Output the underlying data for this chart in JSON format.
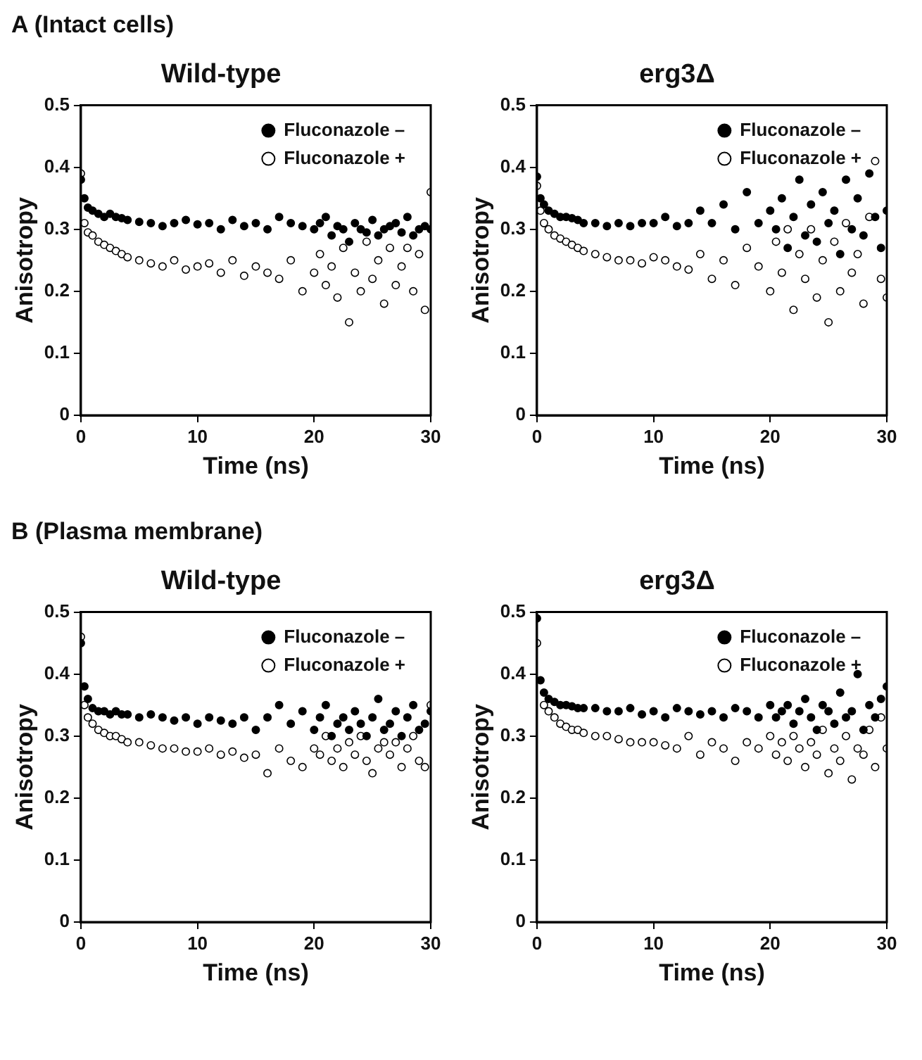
{
  "chart_data": [
    {
      "type": "scatter",
      "title": "Wild-type",
      "annotations": [
        "A (Intact cells)"
      ],
      "xlabel": "Time (ns)",
      "ylabel": "Anisotropy",
      "xlim": [
        0,
        30
      ],
      "xticks": [
        0,
        10,
        20,
        30
      ],
      "ylim": [
        0,
        0.5
      ],
      "yticks": [
        0,
        0.1,
        0.2,
        0.3,
        0.4,
        0.5
      ],
      "legend": "top right",
      "marker": "circle",
      "x": [
        0,
        0.3,
        0.6,
        1,
        1.5,
        2,
        2.5,
        3,
        3.5,
        4,
        5,
        6,
        7,
        8,
        9,
        10,
        11,
        12,
        13,
        14,
        15,
        16,
        17,
        18,
        19,
        20,
        20.5,
        21,
        21.5,
        22,
        22.5,
        23,
        23.5,
        24,
        24.5,
        25,
        25.5,
        26,
        26.5,
        27,
        27.5,
        28,
        28.5,
        29,
        29.5,
        30
      ],
      "series": [
        {
          "name": "Fluconazole –",
          "color": "#000000",
          "values": [
            0.38,
            0.35,
            0.335,
            0.33,
            0.325,
            0.32,
            0.325,
            0.32,
            0.318,
            0.315,
            0.312,
            0.31,
            0.305,
            0.31,
            0.315,
            0.308,
            0.31,
            0.3,
            0.315,
            0.305,
            0.31,
            0.3,
            0.32,
            0.31,
            0.305,
            0.3,
            0.31,
            0.32,
            0.29,
            0.305,
            0.3,
            0.28,
            0.31,
            0.3,
            0.295,
            0.315,
            0.29,
            0.3,
            0.305,
            0.31,
            0.295,
            0.32,
            0.29,
            0.3,
            0.305,
            0.3
          ]
        },
        {
          "name": "Fluconazole +",
          "color": "#ffffff",
          "values": [
            0.39,
            0.31,
            0.295,
            0.29,
            0.28,
            0.275,
            0.27,
            0.265,
            0.26,
            0.255,
            0.25,
            0.245,
            0.24,
            0.25,
            0.235,
            0.24,
            0.245,
            0.23,
            0.25,
            0.225,
            0.24,
            0.23,
            0.22,
            0.25,
            0.2,
            0.23,
            0.26,
            0.21,
            0.24,
            0.19,
            0.27,
            0.15,
            0.23,
            0.2,
            0.28,
            0.22,
            0.25,
            0.18,
            0.27,
            0.21,
            0.24,
            0.27,
            0.2,
            0.26,
            0.17,
            0.36
          ]
        }
      ]
    },
    {
      "type": "scatter",
      "title": "erg3Δ",
      "xlabel": "Time (ns)",
      "ylabel": "Anisotropy",
      "xlim": [
        0,
        30
      ],
      "xticks": [
        0,
        10,
        20,
        30
      ],
      "ylim": [
        0,
        0.5
      ],
      "yticks": [
        0,
        0.1,
        0.2,
        0.3,
        0.4,
        0.5
      ],
      "legend": "top right",
      "marker": "circle",
      "x": [
        0,
        0.3,
        0.6,
        1,
        1.5,
        2,
        2.5,
        3,
        3.5,
        4,
        5,
        6,
        7,
        8,
        9,
        10,
        11,
        12,
        13,
        14,
        15,
        16,
        17,
        18,
        19,
        20,
        20.5,
        21,
        21.5,
        22,
        22.5,
        23,
        23.5,
        24,
        24.5,
        25,
        25.5,
        26,
        26.5,
        27,
        27.5,
        28,
        28.5,
        29,
        29.5,
        30
      ],
      "series": [
        {
          "name": "Fluconazole –",
          "color": "#000000",
          "values": [
            0.385,
            0.35,
            0.34,
            0.33,
            0.325,
            0.32,
            0.32,
            0.318,
            0.315,
            0.31,
            0.31,
            0.305,
            0.31,
            0.305,
            0.31,
            0.31,
            0.32,
            0.305,
            0.31,
            0.33,
            0.31,
            0.34,
            0.3,
            0.36,
            0.31,
            0.33,
            0.3,
            0.35,
            0.27,
            0.32,
            0.38,
            0.29,
            0.34,
            0.28,
            0.36,
            0.31,
            0.33,
            0.26,
            0.38,
            0.3,
            0.35,
            0.29,
            0.39,
            0.32,
            0.27,
            0.33
          ]
        },
        {
          "name": "Fluconazole +",
          "color": "#ffffff",
          "values": [
            0.37,
            0.33,
            0.31,
            0.3,
            0.29,
            0.285,
            0.28,
            0.275,
            0.27,
            0.265,
            0.26,
            0.255,
            0.25,
            0.25,
            0.245,
            0.255,
            0.25,
            0.24,
            0.235,
            0.26,
            0.22,
            0.25,
            0.21,
            0.27,
            0.24,
            0.2,
            0.28,
            0.23,
            0.3,
            0.17,
            0.26,
            0.22,
            0.3,
            0.19,
            0.25,
            0.15,
            0.28,
            0.2,
            0.31,
            0.23,
            0.26,
            0.18,
            0.32,
            0.41,
            0.22,
            0.19
          ]
        }
      ]
    },
    {
      "type": "scatter",
      "title": "Wild-type",
      "annotations": [
        "B (Plasma membrane)"
      ],
      "xlabel": "Time (ns)",
      "ylabel": "Anisotropy",
      "xlim": [
        0,
        30
      ],
      "xticks": [
        0,
        10,
        20,
        30
      ],
      "ylim": [
        0,
        0.5
      ],
      "yticks": [
        0,
        0.1,
        0.2,
        0.3,
        0.4,
        0.5
      ],
      "legend": "top right",
      "marker": "circle",
      "x": [
        0,
        0.3,
        0.6,
        1,
        1.5,
        2,
        2.5,
        3,
        3.5,
        4,
        5,
        6,
        7,
        8,
        9,
        10,
        11,
        12,
        13,
        14,
        15,
        16,
        17,
        18,
        19,
        20,
        20.5,
        21,
        21.5,
        22,
        22.5,
        23,
        23.5,
        24,
        24.5,
        25,
        25.5,
        26,
        26.5,
        27,
        27.5,
        28,
        28.5,
        29,
        29.5,
        30
      ],
      "series": [
        {
          "name": "Fluconazole –",
          "color": "#000000",
          "values": [
            0.45,
            0.38,
            0.36,
            0.345,
            0.34,
            0.34,
            0.335,
            0.34,
            0.335,
            0.335,
            0.33,
            0.335,
            0.33,
            0.325,
            0.33,
            0.32,
            0.33,
            0.325,
            0.32,
            0.33,
            0.31,
            0.33,
            0.35,
            0.32,
            0.34,
            0.31,
            0.33,
            0.35,
            0.3,
            0.32,
            0.33,
            0.31,
            0.34,
            0.32,
            0.3,
            0.33,
            0.36,
            0.31,
            0.32,
            0.34,
            0.3,
            0.33,
            0.35,
            0.31,
            0.32,
            0.34
          ]
        },
        {
          "name": "Fluconazole +",
          "color": "#ffffff",
          "values": [
            0.46,
            0.35,
            0.33,
            0.32,
            0.31,
            0.305,
            0.3,
            0.3,
            0.295,
            0.29,
            0.29,
            0.285,
            0.28,
            0.28,
            0.275,
            0.275,
            0.28,
            0.27,
            0.275,
            0.265,
            0.27,
            0.24,
            0.28,
            0.26,
            0.25,
            0.28,
            0.27,
            0.3,
            0.26,
            0.28,
            0.25,
            0.29,
            0.27,
            0.3,
            0.26,
            0.24,
            0.28,
            0.29,
            0.27,
            0.29,
            0.25,
            0.28,
            0.3,
            0.26,
            0.25,
            0.35
          ]
        }
      ]
    },
    {
      "type": "scatter",
      "title": "erg3Δ",
      "xlabel": "Time (ns)",
      "ylabel": "Anisotropy",
      "xlim": [
        0,
        30
      ],
      "xticks": [
        0,
        10,
        20,
        30
      ],
      "ylim": [
        0,
        0.5
      ],
      "yticks": [
        0,
        0.1,
        0.2,
        0.3,
        0.4,
        0.5
      ],
      "legend": "top right",
      "marker": "circle",
      "x": [
        0,
        0.3,
        0.6,
        1,
        1.5,
        2,
        2.5,
        3,
        3.5,
        4,
        5,
        6,
        7,
        8,
        9,
        10,
        11,
        12,
        13,
        14,
        15,
        16,
        17,
        18,
        19,
        20,
        20.5,
        21,
        21.5,
        22,
        22.5,
        23,
        23.5,
        24,
        24.5,
        25,
        25.5,
        26,
        26.5,
        27,
        27.5,
        28,
        28.5,
        29,
        29.5,
        30
      ],
      "series": [
        {
          "name": "Fluconazole –",
          "color": "#000000",
          "values": [
            0.49,
            0.39,
            0.37,
            0.36,
            0.355,
            0.35,
            0.35,
            0.348,
            0.345,
            0.345,
            0.345,
            0.34,
            0.34,
            0.345,
            0.335,
            0.34,
            0.33,
            0.345,
            0.34,
            0.335,
            0.34,
            0.33,
            0.345,
            0.34,
            0.33,
            0.35,
            0.33,
            0.34,
            0.35,
            0.32,
            0.34,
            0.36,
            0.33,
            0.31,
            0.35,
            0.34,
            0.32,
            0.37,
            0.33,
            0.34,
            0.4,
            0.31,
            0.35,
            0.33,
            0.36,
            0.38
          ]
        },
        {
          "name": "Fluconazole +",
          "color": "#ffffff",
          "values": [
            0.45,
            null,
            0.35,
            0.34,
            0.33,
            0.32,
            0.315,
            0.31,
            0.31,
            0.305,
            0.3,
            0.3,
            0.295,
            0.29,
            0.29,
            0.29,
            0.285,
            0.28,
            0.3,
            0.27,
            0.29,
            0.28,
            0.26,
            0.29,
            0.28,
            0.3,
            0.27,
            0.29,
            0.26,
            0.3,
            0.28,
            0.25,
            0.29,
            0.27,
            0.31,
            0.24,
            0.28,
            0.26,
            0.3,
            0.23,
            0.28,
            0.27,
            0.31,
            0.25,
            0.33,
            0.28
          ]
        }
      ]
    }
  ]
}
